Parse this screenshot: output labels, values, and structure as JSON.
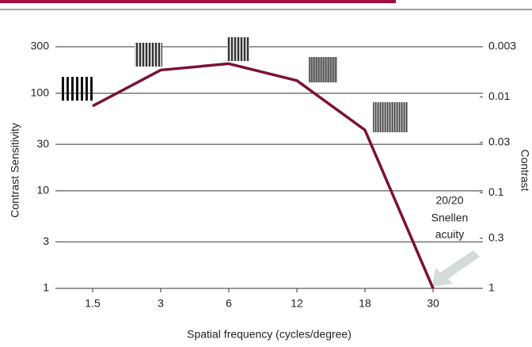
{
  "chart_data": {
    "type": "line",
    "categories": [
      "1.5",
      "3",
      "6",
      "12",
      "18",
      "30"
    ],
    "series": [
      {
        "name": "Contrast Sensitivity",
        "color": "#7a1236",
        "values": [
          74,
          173,
          201,
          135,
          42,
          1
        ]
      }
    ],
    "ylim": [
      1,
      300
    ],
    "yticks": [
      1,
      3,
      10,
      30,
      100,
      300
    ],
    "log_y": true,
    "grid": true,
    "y2lim": [
      1,
      0.003
    ],
    "y2ticks": [
      1,
      0.3,
      0.1,
      0.03,
      0.01,
      0.003
    ],
    "ylabel": "Contrast Sensitivity",
    "y2label": "Contrast",
    "xlabel": "Spatial frequency (cycles/degree)",
    "annotation": [
      "20/20",
      "Snellen",
      "acuity"
    ]
  }
}
